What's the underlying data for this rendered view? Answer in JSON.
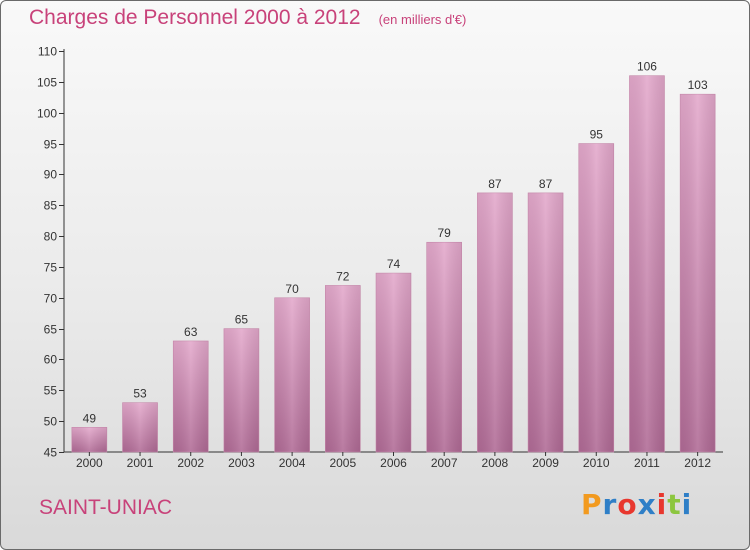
{
  "chart_data": {
    "type": "bar",
    "title": "Charges de Personnel 2000 à 2012",
    "subtitle": "(en milliers d'€)",
    "categories": [
      "2000",
      "2001",
      "2002",
      "2003",
      "2004",
      "2005",
      "2006",
      "2007",
      "2008",
      "2009",
      "2010",
      "2011",
      "2012"
    ],
    "values": [
      49,
      53,
      63,
      65,
      70,
      72,
      74,
      79,
      87,
      87,
      95,
      106,
      103
    ],
    "ylim": [
      45,
      110
    ],
    "yticks": [
      45,
      50,
      55,
      60,
      65,
      70,
      75,
      80,
      85,
      90,
      95,
      100,
      105,
      110
    ],
    "xlabel": "",
    "ylabel": "",
    "grid": false,
    "bar_color_top": "#e3a8cb",
    "bar_color_bottom": "#b06a95"
  },
  "footer": {
    "city": "SAINT-UNIAC",
    "logo_text": "Proxiti",
    "logo_colors": [
      "#f29a1f",
      "#2f7fc7",
      "#e8372e",
      "#2f7fc7",
      "#e8372e",
      "#8cc63f",
      "#2f7fc7"
    ]
  },
  "colors": {
    "title": "#c8427a",
    "axis": "#333333",
    "label": "#333333"
  }
}
